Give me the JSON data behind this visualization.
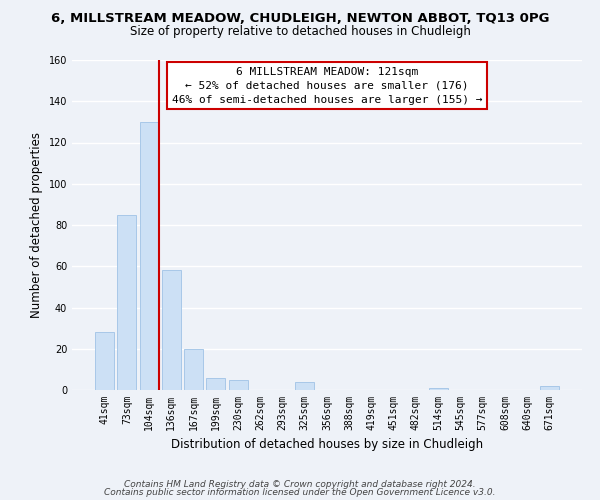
{
  "title": "6, MILLSTREAM MEADOW, CHUDLEIGH, NEWTON ABBOT, TQ13 0PG",
  "subtitle": "Size of property relative to detached houses in Chudleigh",
  "xlabel": "Distribution of detached houses by size in Chudleigh",
  "ylabel": "Number of detached properties",
  "bar_labels": [
    "41sqm",
    "73sqm",
    "104sqm",
    "136sqm",
    "167sqm",
    "199sqm",
    "230sqm",
    "262sqm",
    "293sqm",
    "325sqm",
    "356sqm",
    "388sqm",
    "419sqm",
    "451sqm",
    "482sqm",
    "514sqm",
    "545sqm",
    "577sqm",
    "608sqm",
    "640sqm",
    "671sqm"
  ],
  "bar_values": [
    28,
    85,
    130,
    58,
    20,
    6,
    5,
    0,
    0,
    4,
    0,
    0,
    0,
    0,
    0,
    1,
    0,
    0,
    0,
    0,
    2
  ],
  "bar_color": "#cce0f5",
  "bar_edge_color": "#a8c8e8",
  "vline_color": "#cc0000",
  "ylim": [
    0,
    160
  ],
  "yticks": [
    0,
    20,
    40,
    60,
    80,
    100,
    120,
    140,
    160
  ],
  "annotation_line1": "6 MILLSTREAM MEADOW: 121sqm",
  "annotation_line2": "← 52% of detached houses are smaller (176)",
  "annotation_line3": "46% of semi-detached houses are larger (155) →",
  "footer_line1": "Contains HM Land Registry data © Crown copyright and database right 2024.",
  "footer_line2": "Contains public sector information licensed under the Open Government Licence v3.0.",
  "bg_color": "#eef2f8",
  "plot_bg_color": "#eef2f8",
  "grid_color": "#ffffff",
  "title_fontsize": 9.5,
  "subtitle_fontsize": 8.5,
  "axis_label_fontsize": 8.5,
  "tick_fontsize": 7,
  "annotation_fontsize": 8,
  "footer_fontsize": 6.5
}
